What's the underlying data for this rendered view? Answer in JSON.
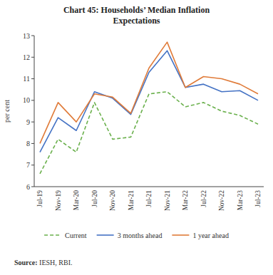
{
  "chart_data": {
    "type": "line",
    "title": "Chart 45: Households’ Median Inflation\nExpectations",
    "y_label": "per cent",
    "annotations": [
      "Source:",
      " IESH, RBI."
    ],
    "categories": [
      "Jul-19",
      "Nov-19",
      "Mar-20",
      "Jul-20",
      "Nov-20",
      "Mar-21",
      "Jul-21",
      "Nov-21",
      "Mar-22",
      "Jul-22",
      "Nov-22",
      "Mar-23",
      "Jul-23"
    ],
    "series": [
      {
        "name": "Current",
        "color": "#6ab04c",
        "line_style": "dashed",
        "values": [
          6.6,
          8.2,
          7.6,
          9.9,
          8.2,
          8.3,
          10.3,
          10.4,
          9.7,
          9.9,
          9.5,
          9.3,
          8.9
        ]
      },
      {
        "name": "3 months ahead",
        "color": "#4472c4",
        "line_style": "solid",
        "values": [
          7.6,
          9.2,
          8.6,
          10.4,
          10.1,
          9.35,
          11.3,
          12.3,
          10.6,
          10.75,
          10.4,
          10.45,
          10.0
        ]
      },
      {
        "name": "1 year ahead",
        "color": "#e07b39",
        "line_style": "solid",
        "values": [
          8.0,
          9.9,
          9.0,
          10.3,
          10.15,
          9.4,
          11.5,
          12.7,
          10.6,
          11.1,
          11.0,
          10.75,
          10.3
        ]
      }
    ],
    "ylim": [
      6,
      13
    ],
    "yticks": [
      6,
      7,
      8,
      9,
      10,
      11,
      12,
      13
    ],
    "grid": false,
    "legend": "bottom"
  }
}
